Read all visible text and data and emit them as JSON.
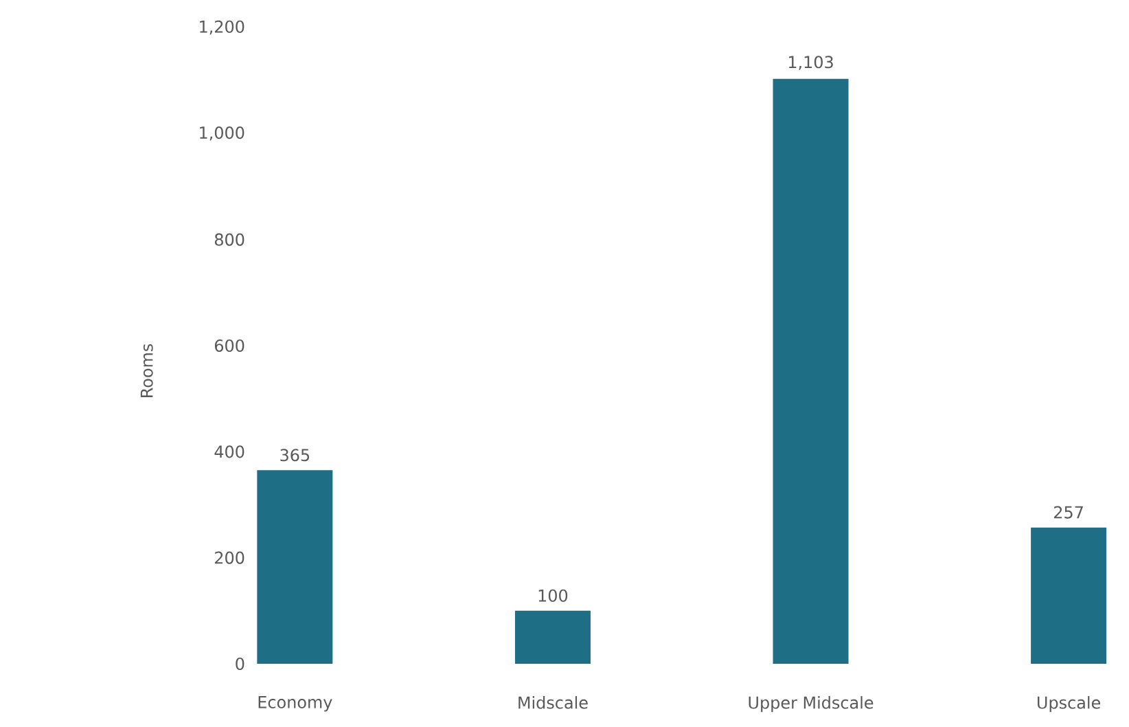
{
  "chart_data": {
    "type": "bar",
    "ylabel": "Rooms",
    "categories": [
      "Economy",
      "Midscale",
      "Upper Midscale",
      "Upscale"
    ],
    "values": [
      365,
      100,
      1103,
      257
    ],
    "value_labels": [
      "365",
      "100",
      "1,103",
      "257"
    ],
    "color": "#1e6e86",
    "ylim": [
      0,
      1200
    ],
    "yticks": [
      0,
      200,
      400,
      600,
      800,
      {
        "value": 1000,
        "label": "1,000"
      },
      {
        "value": 1200,
        "label": "1,200"
      }
    ],
    "grid": false
  }
}
